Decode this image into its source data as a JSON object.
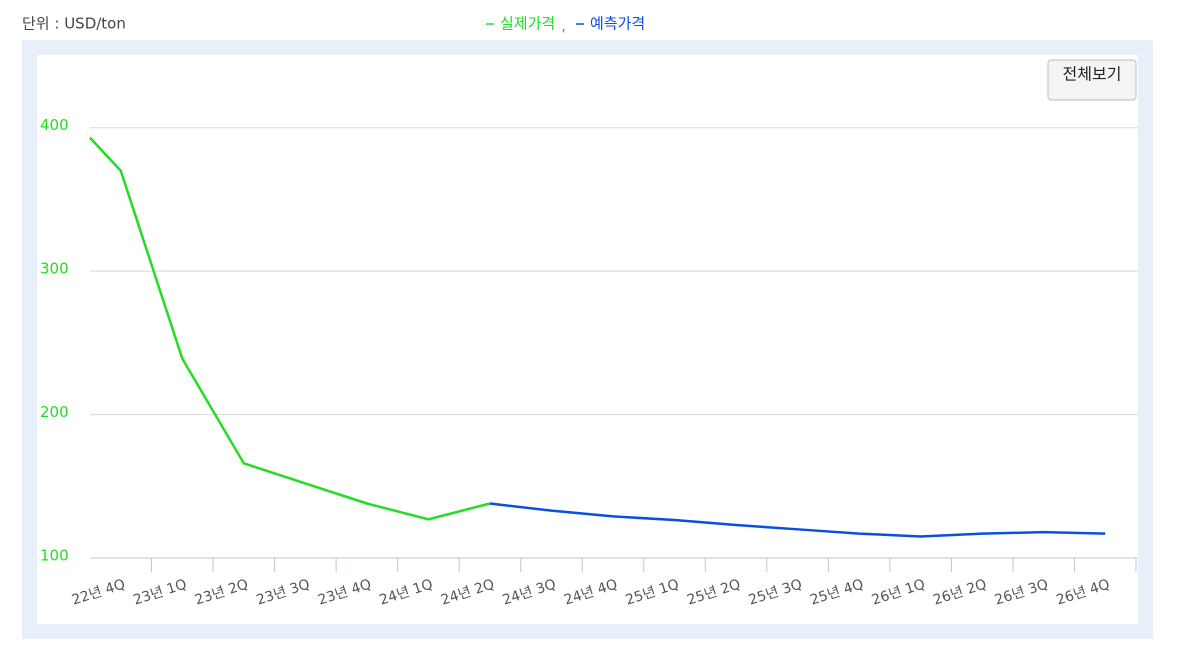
{
  "chart_data": {
    "type": "line",
    "unit_label": "단위 : USD/ton",
    "legend_separator": ",",
    "button": "전체보기",
    "x": [
      -0.5,
      0,
      1,
      2,
      3,
      4,
      5,
      6,
      7,
      8,
      9,
      10,
      11,
      12,
      13,
      14,
      15,
      16
    ],
    "xlim": [
      -0.5,
      16.5
    ],
    "xticks": [
      {
        "value": 0,
        "label": "22년 4Q"
      },
      {
        "value": 1,
        "label": "23년 1Q"
      },
      {
        "value": 2,
        "label": "23년 2Q"
      },
      {
        "value": 3,
        "label": "23년 3Q"
      },
      {
        "value": 4,
        "label": "23년 4Q"
      },
      {
        "value": 5,
        "label": "24년 1Q"
      },
      {
        "value": 6,
        "label": "24년 2Q"
      },
      {
        "value": 7,
        "label": "24년 3Q"
      },
      {
        "value": 8,
        "label": "24년 4Q"
      },
      {
        "value": 9,
        "label": "25년 1Q"
      },
      {
        "value": 10,
        "label": "25년 2Q"
      },
      {
        "value": 11,
        "label": "25년 3Q"
      },
      {
        "value": 12,
        "label": "25년 4Q"
      },
      {
        "value": 13,
        "label": "26년 1Q"
      },
      {
        "value": 14,
        "label": "26년 2Q"
      },
      {
        "value": 15,
        "label": "26년 3Q"
      },
      {
        "value": 16,
        "label": "26년 4Q"
      }
    ],
    "ylim": [
      100,
      450
    ],
    "yticks": [
      100,
      200,
      300,
      400
    ],
    "grid": true,
    "series": [
      {
        "name": "실제가격",
        "color": "#22dd22",
        "values": [
          393,
          370,
          239,
          166,
          152,
          138,
          127,
          138,
          null,
          null,
          null,
          null,
          null,
          null,
          null,
          null,
          null,
          null
        ]
      },
      {
        "name": "예측가격",
        "color": "#0a4fe0",
        "values": [
          null,
          null,
          null,
          null,
          null,
          null,
          null,
          138,
          133,
          129,
          126.5,
          123,
          120,
          117,
          115,
          117,
          118,
          117
        ]
      }
    ]
  }
}
